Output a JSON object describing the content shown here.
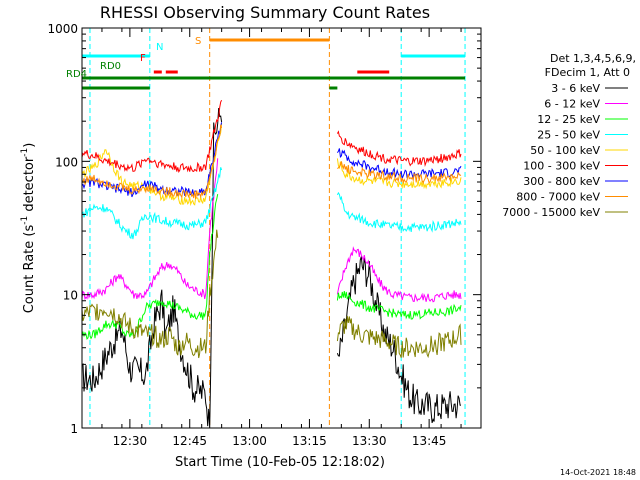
{
  "chart_data": {
    "type": "line",
    "title": "RHESSI Observing Summary Count Rates",
    "xlabel": "Start Time (10-Feb-05 12:18:02)",
    "ylabel_parts": [
      "Count Rate (s",
      "-1",
      " detector",
      "-1",
      ")"
    ],
    "yscale": "log",
    "ylim": [
      1,
      1000
    ],
    "xlim_minutes": [
      0,
      100
    ],
    "y_ticks": [
      {
        "value": 1,
        "label": "1"
      },
      {
        "value": 10,
        "label": "10"
      },
      {
        "value": 100,
        "label": "100"
      },
      {
        "value": 1000,
        "label": "1000"
      }
    ],
    "x_ticks": [
      {
        "minute": 12,
        "label": "12:30"
      },
      {
        "minute": 27,
        "label": "12:45"
      },
      {
        "minute": 42,
        "label": "13:00"
      },
      {
        "minute": 57,
        "label": "13:15"
      },
      {
        "minute": 72,
        "label": "13:30"
      },
      {
        "minute": 87,
        "label": "13:45"
      }
    ],
    "legend_header": [
      "Det 1,3,4,5,6,9,",
      "FDecim 1, Att 0"
    ],
    "series": [
      {
        "name": "3 - 6 keV",
        "color": "#000000",
        "points": [
          [
            0,
            2.4
          ],
          [
            3,
            2.3
          ],
          [
            5,
            3
          ],
          [
            8,
            4.5
          ],
          [
            10,
            5.5
          ],
          [
            12,
            2.8
          ],
          [
            16,
            2.5
          ],
          [
            18,
            6
          ],
          [
            20,
            9
          ],
          [
            21,
            5
          ],
          [
            23,
            8
          ],
          [
            24,
            5
          ],
          [
            26,
            3
          ],
          [
            28,
            2
          ],
          [
            31,
            1.8
          ],
          [
            32,
            1
          ],
          [
            33,
            150
          ],
          [
            35,
            250
          ]
        ],
        "points2": [
          [
            64,
            3
          ],
          [
            66,
            6
          ],
          [
            68,
            12
          ],
          [
            70,
            17
          ],
          [
            72,
            14
          ],
          [
            74,
            8
          ],
          [
            76,
            5
          ],
          [
            78,
            4
          ],
          [
            80,
            2.5
          ],
          [
            82,
            1.8
          ],
          [
            84,
            1.5
          ],
          [
            86,
            1.5
          ],
          [
            88,
            1.4
          ],
          [
            92,
            1.5
          ],
          [
            95,
            1.5
          ]
        ]
      },
      {
        "name": "6 - 12 keV",
        "color": "#ff00ff",
        "points": [
          [
            0,
            10
          ],
          [
            3,
            10
          ],
          [
            6,
            11
          ],
          [
            9,
            14
          ],
          [
            11,
            12
          ],
          [
            13,
            10
          ],
          [
            16,
            10
          ],
          [
            18,
            13
          ],
          [
            20,
            16
          ],
          [
            22,
            17
          ],
          [
            24,
            15
          ],
          [
            26,
            12
          ],
          [
            28,
            11
          ],
          [
            31,
            10
          ],
          [
            32,
            30
          ],
          [
            34,
            100
          ]
        ],
        "points2": [
          [
            64,
            10
          ],
          [
            66,
            16
          ],
          [
            68,
            22
          ],
          [
            70,
            20
          ],
          [
            72,
            17
          ],
          [
            74,
            13
          ],
          [
            76,
            11
          ],
          [
            78,
            10
          ],
          [
            82,
            9.5
          ],
          [
            88,
            9.5
          ],
          [
            92,
            10
          ],
          [
            95,
            10
          ]
        ]
      },
      {
        "name": "12 - 25 keV",
        "color": "#00ff00",
        "points": [
          [
            0,
            5
          ],
          [
            3,
            5
          ],
          [
            6,
            6
          ],
          [
            9,
            6
          ],
          [
            11,
            5
          ],
          [
            13,
            5
          ],
          [
            16,
            8
          ],
          [
            18,
            8.5
          ],
          [
            20,
            9
          ],
          [
            22,
            8.5
          ],
          [
            24,
            8
          ],
          [
            26,
            7.5
          ],
          [
            28,
            7
          ],
          [
            31,
            7
          ],
          [
            32,
            20
          ],
          [
            34,
            60
          ]
        ],
        "points2": [
          [
            64,
            9.5
          ],
          [
            66,
            10
          ],
          [
            68,
            9
          ],
          [
            70,
            8.5
          ],
          [
            72,
            8
          ],
          [
            76,
            7.5
          ],
          [
            80,
            7
          ],
          [
            86,
            7.2
          ],
          [
            92,
            7.5
          ],
          [
            95,
            8
          ]
        ]
      },
      {
        "name": "25 - 50 keV",
        "color": "#00ffff",
        "points": [
          [
            0,
            40
          ],
          [
            3,
            45
          ],
          [
            6,
            45
          ],
          [
            9,
            35
          ],
          [
            11,
            30
          ],
          [
            13,
            28
          ],
          [
            16,
            40
          ],
          [
            18,
            38
          ],
          [
            20,
            36
          ],
          [
            24,
            34
          ],
          [
            28,
            33
          ],
          [
            31,
            35
          ],
          [
            33,
            55
          ],
          [
            35,
            90
          ]
        ],
        "points2": [
          [
            64,
            60
          ],
          [
            66,
            42
          ],
          [
            68,
            38
          ],
          [
            70,
            37
          ],
          [
            72,
            35
          ],
          [
            76,
            33
          ],
          [
            80,
            32
          ],
          [
            86,
            32
          ],
          [
            92,
            34
          ],
          [
            95,
            35
          ]
        ]
      },
      {
        "name": "50 - 100 keV",
        "color": "#ffd700",
        "points": [
          [
            0,
            80
          ],
          [
            3,
            90
          ],
          [
            5,
            110
          ],
          [
            6,
            125
          ],
          [
            8,
            90
          ],
          [
            10,
            70
          ],
          [
            13,
            65
          ],
          [
            16,
            65
          ],
          [
            18,
            60
          ],
          [
            20,
            55
          ],
          [
            24,
            52
          ],
          [
            28,
            50
          ],
          [
            31,
            52
          ],
          [
            33,
            100
          ],
          [
            35,
            180
          ]
        ],
        "points2": [
          [
            64,
            100
          ],
          [
            66,
            80
          ],
          [
            68,
            75
          ],
          [
            70,
            72
          ],
          [
            74,
            70
          ],
          [
            80,
            68
          ],
          [
            86,
            68
          ],
          [
            92,
            70
          ],
          [
            95,
            72
          ]
        ]
      },
      {
        "name": "100 - 300 keV",
        "color": "#ff0000",
        "points": [
          [
            0,
            115
          ],
          [
            3,
            110
          ],
          [
            6,
            100
          ],
          [
            9,
            95
          ],
          [
            11,
            90
          ],
          [
            13,
            88
          ],
          [
            16,
            105
          ],
          [
            18,
            100
          ],
          [
            20,
            95
          ],
          [
            24,
            90
          ],
          [
            28,
            88
          ],
          [
            31,
            92
          ],
          [
            33,
            160
          ],
          [
            35,
            280
          ]
        ],
        "points2": [
          [
            64,
            160
          ],
          [
            66,
            140
          ],
          [
            68,
            130
          ],
          [
            70,
            120
          ],
          [
            72,
            115
          ],
          [
            76,
            105
          ],
          [
            80,
            100
          ],
          [
            86,
            100
          ],
          [
            92,
            108
          ],
          [
            95,
            115
          ]
        ]
      },
      {
        "name": "300 - 800 keV",
        "color": "#0000ff",
        "points": [
          [
            0,
            68
          ],
          [
            3,
            70
          ],
          [
            6,
            65
          ],
          [
            9,
            62
          ],
          [
            11,
            60
          ],
          [
            13,
            58
          ],
          [
            16,
            68
          ],
          [
            18,
            65
          ],
          [
            20,
            62
          ],
          [
            24,
            60
          ],
          [
            28,
            58
          ],
          [
            31,
            60
          ],
          [
            33,
            110
          ],
          [
            35,
            200
          ]
        ],
        "points2": [
          [
            64,
            120
          ],
          [
            66,
            110
          ],
          [
            68,
            100
          ],
          [
            70,
            95
          ],
          [
            72,
            90
          ],
          [
            76,
            85
          ],
          [
            80,
            80
          ],
          [
            86,
            80
          ],
          [
            92,
            82
          ],
          [
            95,
            85
          ]
        ]
      },
      {
        "name": "800 - 7000 keV",
        "color": "#ff8c00",
        "points": [
          [
            0,
            72
          ],
          [
            3,
            74
          ],
          [
            6,
            70
          ],
          [
            9,
            65
          ],
          [
            11,
            62
          ],
          [
            13,
            60
          ],
          [
            16,
            64
          ],
          [
            18,
            62
          ],
          [
            20,
            60
          ],
          [
            24,
            58
          ],
          [
            28,
            56
          ],
          [
            31,
            58
          ],
          [
            33,
            100
          ],
          [
            35,
            190
          ]
        ],
        "points2": [
          [
            64,
            95
          ],
          [
            66,
            90
          ],
          [
            68,
            85
          ],
          [
            70,
            82
          ],
          [
            72,
            80
          ],
          [
            76,
            78
          ],
          [
            80,
            75
          ],
          [
            86,
            74
          ],
          [
            92,
            76
          ],
          [
            95,
            78
          ]
        ]
      },
      {
        "name": "7000 - 15000 keV",
        "color": "#808000",
        "points": [
          [
            0,
            7
          ],
          [
            3,
            7.5
          ],
          [
            6,
            8
          ],
          [
            9,
            7
          ],
          [
            11,
            6
          ],
          [
            13,
            5.5
          ],
          [
            16,
            5
          ],
          [
            18,
            5
          ],
          [
            20,
            4.5
          ],
          [
            22,
            5
          ],
          [
            24,
            4
          ],
          [
            26,
            4.5
          ],
          [
            28,
            4
          ],
          [
            31,
            4
          ],
          [
            32,
            10
          ],
          [
            34,
            30
          ]
        ],
        "points2": [
          [
            64,
            5
          ],
          [
            66,
            6
          ],
          [
            68,
            5.5
          ],
          [
            70,
            5
          ],
          [
            72,
            4.8
          ],
          [
            76,
            4.5
          ],
          [
            80,
            4
          ],
          [
            86,
            4
          ],
          [
            92,
            4.5
          ],
          [
            95,
            5
          ]
        ]
      }
    ],
    "flags": {
      "labels": {
        "n": "N",
        "f": "F",
        "s": "S",
        "rd0": "RD0",
        "rd4": "RD4"
      },
      "bars": [
        {
          "name": "night",
          "color": "#00ffff",
          "y_frac": 0.93,
          "x": [
            [
              0,
              17
            ],
            [
              80,
              96
            ]
          ]
        },
        {
          "name": "fast-rate",
          "color": "#ff0000",
          "y_frac": 0.89,
          "x": [
            [
              18,
              20
            ],
            [
              21,
              24
            ],
            [
              69,
              77
            ]
          ]
        },
        {
          "name": "saa",
          "color": "#ff8c00",
          "y_frac": 0.97,
          "x": [
            [
              32,
              62
            ]
          ]
        },
        {
          "name": "rd0",
          "color": "#008000",
          "y_frac": 0.875,
          "x": [
            [
              0,
              96
            ]
          ]
        },
        {
          "name": "rd4",
          "color": "#008000",
          "y_frac": 0.85,
          "x": [
            [
              0,
              17
            ],
            [
              62,
              64
            ]
          ]
        }
      ],
      "verticals": [
        {
          "name": "night-start",
          "color": "#00ffff",
          "x": 2
        },
        {
          "name": "night-end",
          "color": "#00ffff",
          "x": 17
        },
        {
          "name": "saa-start",
          "color": "#ff8c00",
          "x": 32
        },
        {
          "name": "saa-end",
          "color": "#ff8c00",
          "x": 62
        },
        {
          "name": "night-start-2",
          "color": "#00ffff",
          "x": 80
        },
        {
          "name": "night-end-2",
          "color": "#00ffff",
          "x": 96
        }
      ]
    },
    "footer_date": "14-Oct-2021 18:48"
  }
}
